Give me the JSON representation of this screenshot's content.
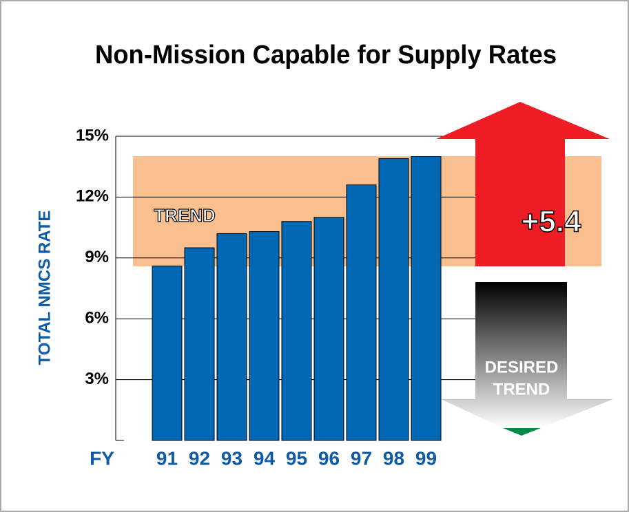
{
  "chart_data": {
    "type": "bar",
    "title": "Non-Mission Capable for Supply Rates",
    "y_label": "TOTAL NMCS RATE",
    "x_label": "FY",
    "categories": [
      "91",
      "92",
      "93",
      "94",
      "95",
      "96",
      "97",
      "98",
      "99"
    ],
    "values": [
      8.6,
      9.5,
      10.2,
      10.3,
      10.8,
      11.0,
      12.6,
      13.9,
      14.0
    ],
    "color": "#0068b5",
    "ylim": [
      0,
      15
    ],
    "yticks": [
      {
        "value": 3,
        "label": "3%"
      },
      {
        "value": 6,
        "label": "6%"
      },
      {
        "value": 9,
        "label": "9%"
      },
      {
        "value": 12,
        "label": "12%"
      },
      {
        "value": 15,
        "label": "15%"
      }
    ],
    "grid": true,
    "annotations": {
      "trend": "TREND",
      "change": "+5.4",
      "desired_1": "DESIRED",
      "desired_2": "TREND"
    }
  }
}
